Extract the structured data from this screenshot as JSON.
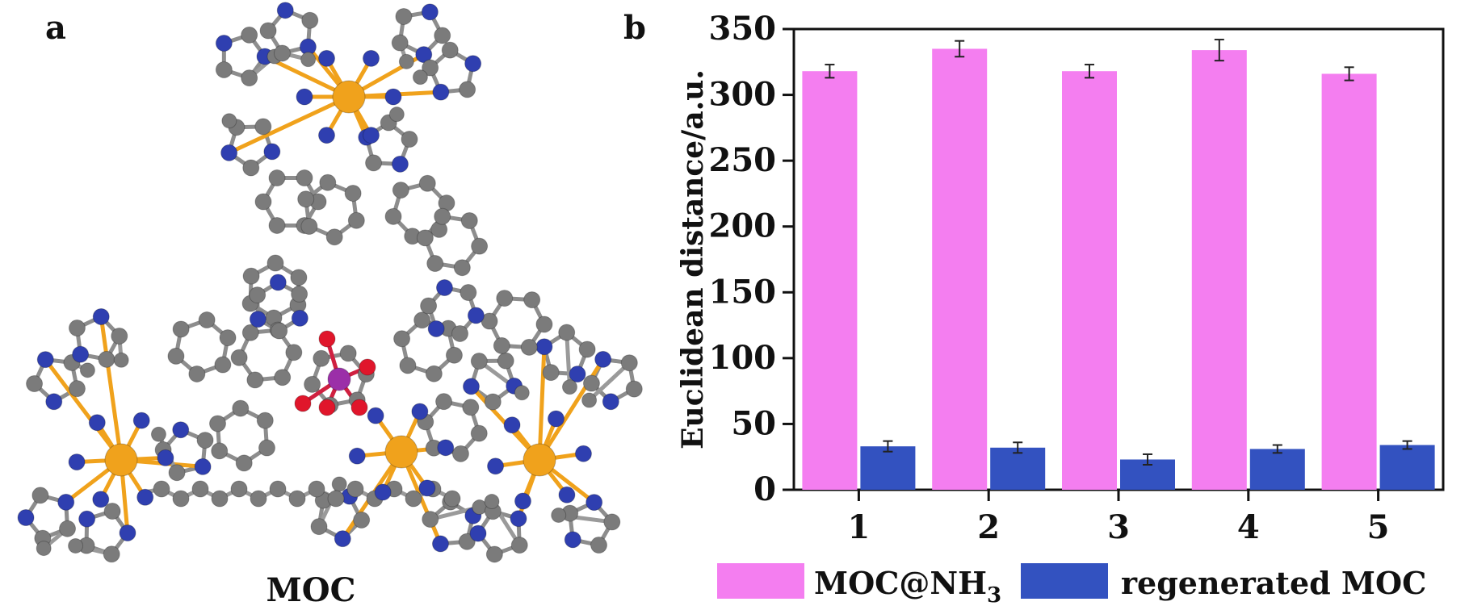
{
  "panels": {
    "a": {
      "label": "a",
      "caption": "MOC"
    },
    "b": {
      "label": "b"
    }
  },
  "colors": {
    "moc_nh3": "#f47ef0",
    "regenerated": "#3352c0",
    "atom_c": "#7b7b7b",
    "atom_n": "#2f3fb0",
    "atom_metal": "#f0a21c",
    "atom_o": "#e0162b",
    "atom_p": "#9b2fa8"
  },
  "chart_data": {
    "type": "bar",
    "categories": [
      "1",
      "2",
      "3",
      "4",
      "5"
    ],
    "series": [
      {
        "name": "MOC@NH3",
        "name_main": "MOC@NH",
        "name_sub": "3",
        "values": [
          318,
          335,
          318,
          334,
          316
        ],
        "errors": [
          5,
          6,
          5,
          8,
          5
        ],
        "color": "#f47ef0"
      },
      {
        "name": "regenerated MOC",
        "values": [
          33,
          32,
          23,
          31,
          34
        ],
        "errors": [
          4,
          4,
          4,
          3,
          3
        ],
        "color": "#3352c0"
      }
    ],
    "ylabel": "Euclidean distance/a.u.",
    "xlabel": "",
    "ylim": [
      0,
      350
    ],
    "yticks": [
      0,
      50,
      100,
      150,
      200,
      250,
      300,
      350
    ],
    "grid": false,
    "legend_position": "bottom"
  }
}
